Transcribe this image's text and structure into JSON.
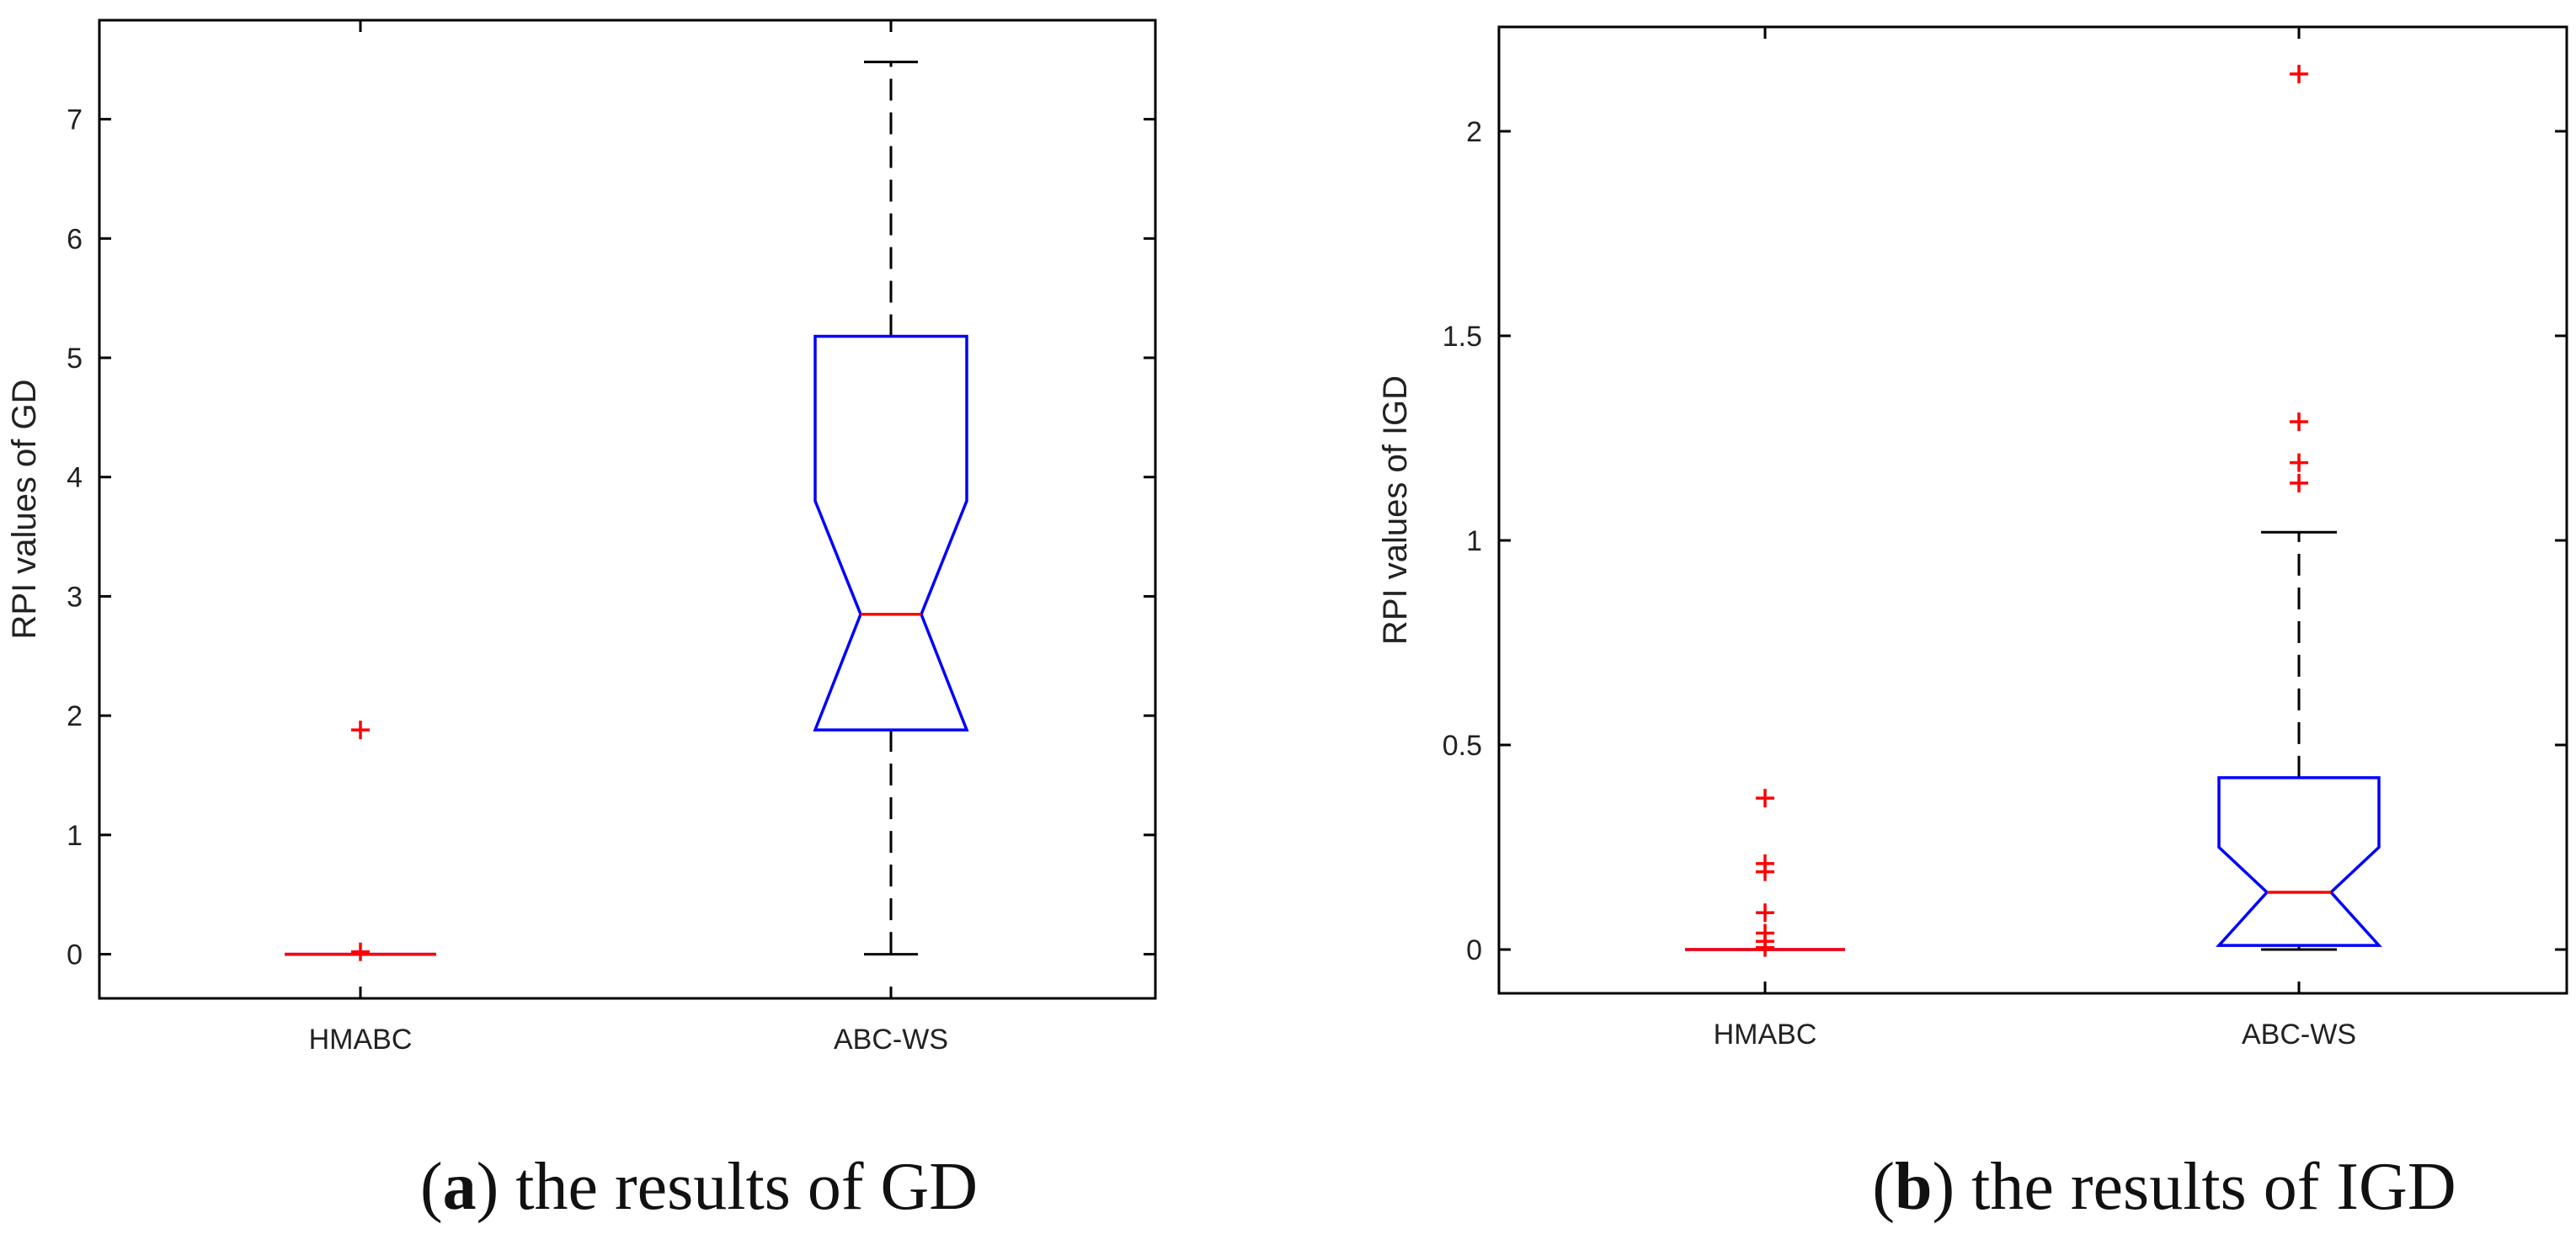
{
  "chart_data": [
    {
      "type": "box",
      "id": "gd",
      "caption_letter": "a",
      "caption_text": "the results of GD",
      "ylabel": "RPI values of GD",
      "xlabel": "",
      "ylim": [
        -0.37,
        7.83
      ],
      "yticks": [
        0,
        1,
        2,
        3,
        4,
        5,
        6,
        7
      ],
      "ytick_labels": [
        "0",
        "1",
        "2",
        "3",
        "4",
        "5",
        "6",
        "7"
      ],
      "categories": [
        "HMABC",
        "ABC-WS"
      ],
      "boxes": [
        {
          "name": "HMABC",
          "min": 0,
          "q1": 0,
          "median": 0,
          "q3": 0,
          "max": 0,
          "notch_low": 0,
          "notch_high": 0,
          "outliers": [
            1.88,
            0.02
          ]
        },
        {
          "name": "ABC-WS",
          "min": 0,
          "q1": 1.88,
          "median": 2.85,
          "q3": 5.18,
          "max": 7.48,
          "notch_low": 1.88,
          "notch_high": 3.8,
          "outliers": []
        }
      ]
    },
    {
      "type": "box",
      "id": "igd",
      "caption_letter": "b",
      "caption_text": "the results of IGD",
      "ylabel": "RPI values of IGD",
      "xlabel": "",
      "ylim": [
        -0.107,
        2.255
      ],
      "yticks": [
        0,
        0.5,
        1,
        1.5,
        2
      ],
      "ytick_labels": [
        "0",
        "0.5",
        "1",
        "1.5",
        "2"
      ],
      "categories": [
        "HMABC",
        "ABC-WS"
      ],
      "boxes": [
        {
          "name": "HMABC",
          "min": 0,
          "q1": 0,
          "median": 0,
          "q3": 0,
          "max": 0,
          "notch_low": 0,
          "notch_high": 0,
          "outliers": [
            0.37,
            0.21,
            0.19,
            0.09,
            0.04,
            0.02,
            0.005
          ]
        },
        {
          "name": "ABC-WS",
          "min": 0,
          "q1": 0.01,
          "median": 0.14,
          "q3": 0.42,
          "max": 1.02,
          "notch_low": 0.01,
          "notch_high": 0.25,
          "outliers": [
            2.14,
            1.29,
            1.19,
            1.14
          ]
        }
      ]
    }
  ],
  "colors": {
    "box": "#0000ff",
    "median": "#ff0000",
    "outlier": "#ff0000",
    "whisker": "#000000",
    "axis": "#000000"
  }
}
